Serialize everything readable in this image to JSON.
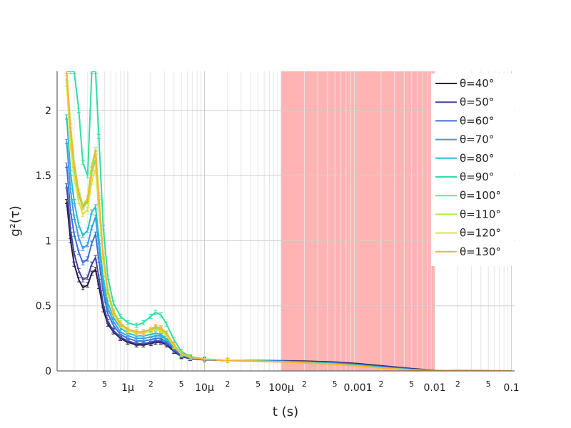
{
  "chart_data": {
    "type": "line",
    "xlabel": "t (s)",
    "ylabel": "g²(τ)",
    "xscale": "log",
    "xlim": [
      1.2e-07,
      0.11
    ],
    "ylim": [
      0,
      2.3
    ],
    "grid": true,
    "legend_position": "top-right",
    "shaded_region": {
      "x": [
        0.0001,
        0.01
      ],
      "color": "#ffb3b3"
    },
    "x_major_ticks": [
      {
        "value": 1e-06,
        "label": "1μ"
      },
      {
        "value": 1e-05,
        "label": "10μ"
      },
      {
        "value": 0.0001,
        "label": "100μ"
      },
      {
        "value": 0.001,
        "label": "0.001"
      },
      {
        "value": 0.01,
        "label": "0.01"
      },
      {
        "value": 0.1,
        "label": "0.1"
      }
    ],
    "x_minor_ticks": [
      {
        "value": 2e-07,
        "label": "2"
      },
      {
        "value": 5e-07,
        "label": "5"
      },
      {
        "value": 2e-06,
        "label": "2"
      },
      {
        "value": 5e-06,
        "label": "5"
      },
      {
        "value": 2e-05,
        "label": "2"
      },
      {
        "value": 5e-05,
        "label": "5"
      },
      {
        "value": 0.0002,
        "label": "2"
      },
      {
        "value": 0.0005,
        "label": "5"
      },
      {
        "value": 0.002,
        "label": "2"
      },
      {
        "value": 0.005,
        "label": "5"
      },
      {
        "value": 0.02,
        "label": "2"
      },
      {
        "value": 0.05,
        "label": "5"
      }
    ],
    "y_ticks": [
      {
        "value": 0,
        "label": "0"
      },
      {
        "value": 0.5,
        "label": "0.5"
      },
      {
        "value": 1,
        "label": "1"
      },
      {
        "value": 1.5,
        "label": "1.5"
      },
      {
        "value": 2,
        "label": "2"
      }
    ],
    "x": [
      1.6e-07,
      1.8e-07,
      2e-07,
      2.3e-07,
      2.6e-07,
      3e-07,
      3.4e-07,
      3.8e-07,
      4.2e-07,
      4.8e-07,
      5.5e-07,
      6.5e-07,
      8e-07,
      1e-06,
      1.3e-06,
      1.6e-06,
      2e-06,
      2.3e-06,
      2.7e-06,
      3.2e-06,
      4e-06,
      5e-06,
      6.5e-06,
      1e-05,
      2e-05,
      5e-05,
      0.0001,
      0.0002,
      0.0005,
      0.001,
      0.002,
      0.005,
      0.01,
      0.02,
      0.1
    ],
    "series": [
      {
        "name": "θ=40°",
        "color": "#2c1a43",
        "values": [
          1.3,
          1.0,
          0.82,
          0.7,
          0.64,
          0.66,
          0.75,
          0.78,
          0.65,
          0.47,
          0.36,
          0.3,
          0.25,
          0.22,
          0.2,
          0.2,
          0.21,
          0.22,
          0.22,
          0.2,
          0.15,
          0.11,
          0.095,
          0.085,
          0.08,
          0.08,
          0.078,
          0.075,
          0.068,
          0.056,
          0.04,
          0.018,
          0.004,
          0.001,
          0.0
        ]
      },
      {
        "name": "θ=50°",
        "color": "#3f44a6",
        "values": [
          1.42,
          1.08,
          0.9,
          0.77,
          0.7,
          0.72,
          0.82,
          0.87,
          0.72,
          0.51,
          0.38,
          0.31,
          0.26,
          0.23,
          0.21,
          0.21,
          0.22,
          0.23,
          0.23,
          0.21,
          0.16,
          0.115,
          0.097,
          0.086,
          0.08,
          0.079,
          0.076,
          0.072,
          0.064,
          0.052,
          0.036,
          0.015,
          0.003,
          0.001,
          0.0
        ]
      },
      {
        "name": "θ=60°",
        "color": "#3e6fd8",
        "values": [
          1.58,
          1.22,
          1.05,
          0.91,
          0.83,
          0.86,
          0.98,
          1.05,
          0.85,
          0.6,
          0.44,
          0.35,
          0.28,
          0.25,
          0.23,
          0.23,
          0.24,
          0.25,
          0.25,
          0.22,
          0.17,
          0.12,
          0.1,
          0.087,
          0.08,
          0.078,
          0.075,
          0.07,
          0.061,
          0.048,
          0.032,
          0.012,
          0.002,
          0.0,
          0.0
        ]
      },
      {
        "name": "θ=70°",
        "color": "#3f9aeb",
        "values": [
          1.76,
          1.38,
          1.18,
          1.02,
          0.94,
          0.97,
          1.1,
          1.18,
          0.96,
          0.66,
          0.48,
          0.38,
          0.3,
          0.27,
          0.25,
          0.25,
          0.26,
          0.27,
          0.27,
          0.24,
          0.18,
          0.125,
          0.102,
          0.088,
          0.08,
          0.077,
          0.073,
          0.068,
          0.058,
          0.045,
          0.029,
          0.01,
          0.002,
          0.0,
          0.0
        ]
      },
      {
        "name": "θ=80°",
        "color": "#1fc3c9",
        "values": [
          1.95,
          1.52,
          1.3,
          1.12,
          1.04,
          1.08,
          1.22,
          1.26,
          1.02,
          0.71,
          0.52,
          0.41,
          0.33,
          0.29,
          0.27,
          0.27,
          0.28,
          0.29,
          0.28,
          0.25,
          0.19,
          0.13,
          0.105,
          0.09,
          0.08,
          0.076,
          0.071,
          0.065,
          0.055,
          0.042,
          0.026,
          0.009,
          0.001,
          0.0,
          0.0
        ]
      },
      {
        "name": "θ=90°",
        "color": "#2ee0a0",
        "values": [
          2.3,
          2.3,
          2.3,
          2.0,
          1.6,
          1.5,
          2.3,
          2.3,
          1.8,
          1.1,
          0.72,
          0.52,
          0.42,
          0.37,
          0.35,
          0.37,
          0.42,
          0.45,
          0.43,
          0.36,
          0.24,
          0.15,
          0.11,
          0.092,
          0.08,
          0.075,
          0.07,
          0.064,
          0.053,
          0.04,
          0.024,
          0.008,
          0.001,
          0.0,
          0.0
        ]
      },
      {
        "name": "θ=100°",
        "color": "#63f26d",
        "values": [
          2.25,
          1.8,
          1.55,
          1.35,
          1.25,
          1.3,
          1.52,
          1.62,
          1.3,
          0.86,
          0.6,
          0.45,
          0.36,
          0.31,
          0.29,
          0.29,
          0.31,
          0.33,
          0.32,
          0.28,
          0.2,
          0.135,
          0.106,
          0.09,
          0.08,
          0.075,
          0.07,
          0.063,
          0.052,
          0.039,
          0.023,
          0.007,
          0.001,
          0.0,
          0.0
        ]
      },
      {
        "name": "θ=110°",
        "color": "#a7f043",
        "values": [
          2.3,
          1.88,
          1.6,
          1.38,
          1.27,
          1.33,
          1.58,
          1.7,
          1.35,
          0.89,
          0.62,
          0.46,
          0.37,
          0.32,
          0.3,
          0.3,
          0.32,
          0.34,
          0.33,
          0.29,
          0.2,
          0.135,
          0.106,
          0.09,
          0.08,
          0.074,
          0.069,
          0.062,
          0.051,
          0.038,
          0.022,
          0.007,
          0.001,
          0.0,
          0.0
        ]
      },
      {
        "name": "θ=120°",
        "color": "#dfe33a",
        "values": [
          2.2,
          1.72,
          1.48,
          1.3,
          1.2,
          1.24,
          1.45,
          1.55,
          1.25,
          0.84,
          0.59,
          0.44,
          0.35,
          0.31,
          0.29,
          0.29,
          0.31,
          0.32,
          0.31,
          0.27,
          0.19,
          0.13,
          0.104,
          0.089,
          0.08,
          0.074,
          0.069,
          0.062,
          0.051,
          0.038,
          0.022,
          0.007,
          0.001,
          0.0,
          0.0
        ]
      },
      {
        "name": "θ=130°",
        "color": "#f5b43a",
        "values": [
          2.3,
          1.85,
          1.58,
          1.37,
          1.26,
          1.32,
          1.55,
          1.68,
          1.33,
          0.88,
          0.61,
          0.45,
          0.36,
          0.32,
          0.3,
          0.3,
          0.32,
          0.34,
          0.33,
          0.29,
          0.2,
          0.135,
          0.105,
          0.09,
          0.08,
          0.074,
          0.069,
          0.062,
          0.051,
          0.038,
          0.022,
          0.007,
          0.001,
          0.0,
          0.0
        ]
      }
    ]
  }
}
